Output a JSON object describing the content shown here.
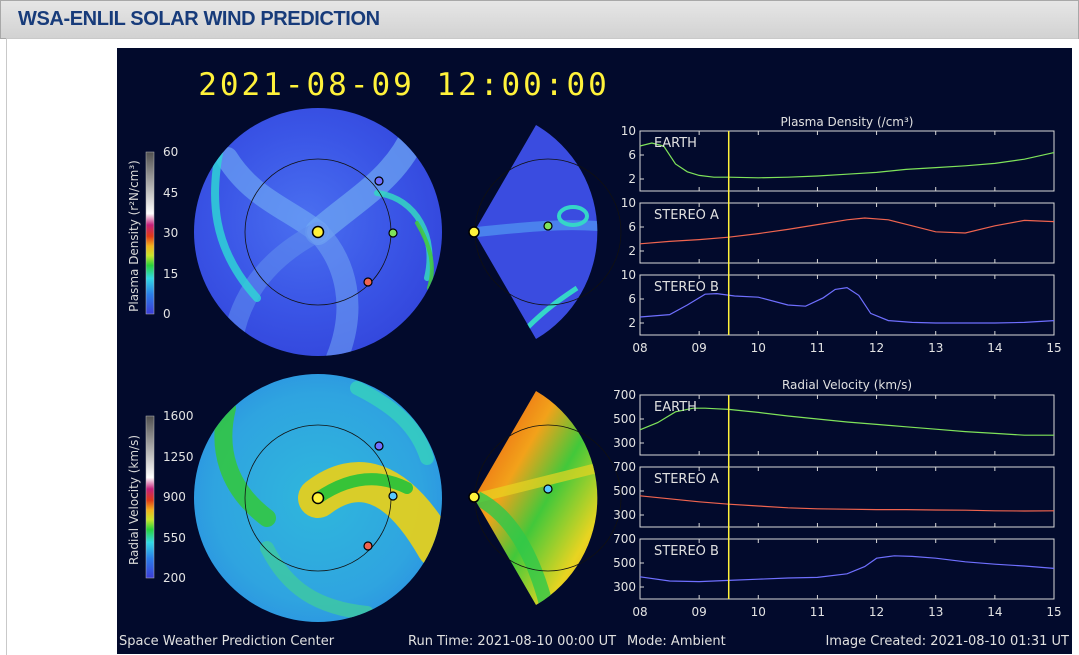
{
  "header": {
    "title": "WSA-ENLIL SOLAR WIND PREDICTION"
  },
  "colors": {
    "background": "#020a2c",
    "earth": "#7fe35a",
    "stereo_a": "#f0644f",
    "stereo_b": "#6f6fff",
    "marker": "#fff23a"
  },
  "figure": {
    "timestamp": "2021-08-09 12:00:00",
    "footer": {
      "left": "Space Weather Prediction Center",
      "run_time": "Run Time: 2021-08-10 00:00 UT",
      "mode": "Mode: Ambient",
      "created": "Image Created: 2021-08-10 01:31 UT"
    },
    "density_colorbar": {
      "label": "Plasma Density (r²N/cm³)",
      "ticks": [
        "60",
        "45",
        "30",
        "15",
        "0"
      ]
    },
    "velocity_colorbar": {
      "label": "Radial Velocity (km/s)",
      "ticks": [
        "1600",
        "1250",
        "900",
        "550",
        "200"
      ]
    }
  },
  "chart_data": [
    {
      "type": "line",
      "title": "Plasma Density (/cm³)",
      "x_ticks": [
        "08",
        "09",
        "10",
        "11",
        "12",
        "13",
        "14",
        "15"
      ],
      "xlim": [
        8,
        15
      ],
      "current_time": 9.5,
      "panels": [
        {
          "name": "EARTH",
          "ylim": [
            0,
            10
          ],
          "yticks": [
            "10",
            "6",
            "2"
          ],
          "x": [
            8.0,
            8.2,
            8.4,
            8.6,
            8.8,
            9.0,
            9.25,
            9.5,
            10.0,
            10.5,
            11.0,
            11.5,
            12.0,
            12.5,
            13.0,
            13.5,
            14.0,
            14.5,
            15.0
          ],
          "values": [
            7.5,
            8.0,
            7.5,
            4.5,
            3.2,
            2.6,
            2.3,
            2.3,
            2.2,
            2.3,
            2.5,
            2.8,
            3.1,
            3.6,
            3.9,
            4.2,
            4.6,
            5.3,
            6.4
          ]
        },
        {
          "name": "STEREO A",
          "ylim": [
            0,
            10
          ],
          "yticks": [
            "10",
            "6",
            "2"
          ],
          "x": [
            8.0,
            8.5,
            9.0,
            9.5,
            10.0,
            10.5,
            11.0,
            11.5,
            11.8,
            12.2,
            12.6,
            13.0,
            13.5,
            14.0,
            14.5,
            15.0
          ],
          "values": [
            3.2,
            3.6,
            3.9,
            4.3,
            4.9,
            5.6,
            6.4,
            7.2,
            7.5,
            7.2,
            6.2,
            5.2,
            5.0,
            6.2,
            7.1,
            6.9
          ]
        },
        {
          "name": "STEREO B",
          "ylim": [
            0,
            10
          ],
          "yticks": [
            "10",
            "6",
            "2"
          ],
          "x": [
            8.0,
            8.5,
            8.8,
            9.1,
            9.3,
            9.6,
            10.0,
            10.5,
            10.8,
            11.1,
            11.3,
            11.5,
            11.7,
            11.9,
            12.2,
            12.6,
            13.0,
            13.5,
            14.0,
            14.5,
            15.0
          ],
          "values": [
            3.0,
            3.4,
            5.0,
            6.8,
            6.9,
            6.5,
            6.3,
            5.0,
            4.8,
            6.2,
            7.6,
            7.9,
            6.6,
            3.6,
            2.4,
            2.1,
            2.0,
            2.0,
            2.0,
            2.1,
            2.4
          ]
        }
      ]
    },
    {
      "type": "line",
      "title": "Radial Velocity (km/s)",
      "x_ticks": [
        "08",
        "09",
        "10",
        "11",
        "12",
        "13",
        "14",
        "15"
      ],
      "xlim": [
        8,
        15
      ],
      "current_time": 9.5,
      "panels": [
        {
          "name": "EARTH",
          "ylim": [
            200,
            700
          ],
          "yticks": [
            "700",
            "500",
            "300"
          ],
          "x": [
            8.0,
            8.3,
            8.6,
            8.9,
            9.1,
            9.3,
            9.5,
            10.0,
            10.5,
            11.0,
            11.5,
            12.0,
            12.5,
            13.0,
            13.5,
            14.0,
            14.5,
            15.0
          ],
          "values": [
            410,
            470,
            560,
            590,
            590,
            585,
            580,
            555,
            525,
            500,
            475,
            455,
            435,
            415,
            395,
            380,
            365,
            365
          ]
        },
        {
          "name": "STEREO A",
          "ylim": [
            200,
            700
          ],
          "yticks": [
            "700",
            "500",
            "300"
          ],
          "x": [
            8.0,
            8.5,
            9.0,
            9.5,
            10.0,
            10.5,
            11.0,
            11.5,
            12.0,
            12.5,
            13.0,
            13.5,
            14.0,
            14.5,
            15.0
          ],
          "values": [
            460,
            435,
            410,
            390,
            375,
            360,
            352,
            348,
            345,
            345,
            342,
            340,
            335,
            333,
            335
          ]
        },
        {
          "name": "STEREO B",
          "ylim": [
            200,
            700
          ],
          "yticks": [
            "700",
            "500",
            "300"
          ],
          "x": [
            8.0,
            8.5,
            9.0,
            9.5,
            10.0,
            10.5,
            11.0,
            11.5,
            11.8,
            12.0,
            12.3,
            12.6,
            13.0,
            13.5,
            14.0,
            14.5,
            15.0
          ],
          "values": [
            385,
            350,
            345,
            355,
            365,
            375,
            380,
            410,
            470,
            540,
            560,
            555,
            540,
            510,
            490,
            475,
            455
          ]
        }
      ]
    }
  ]
}
